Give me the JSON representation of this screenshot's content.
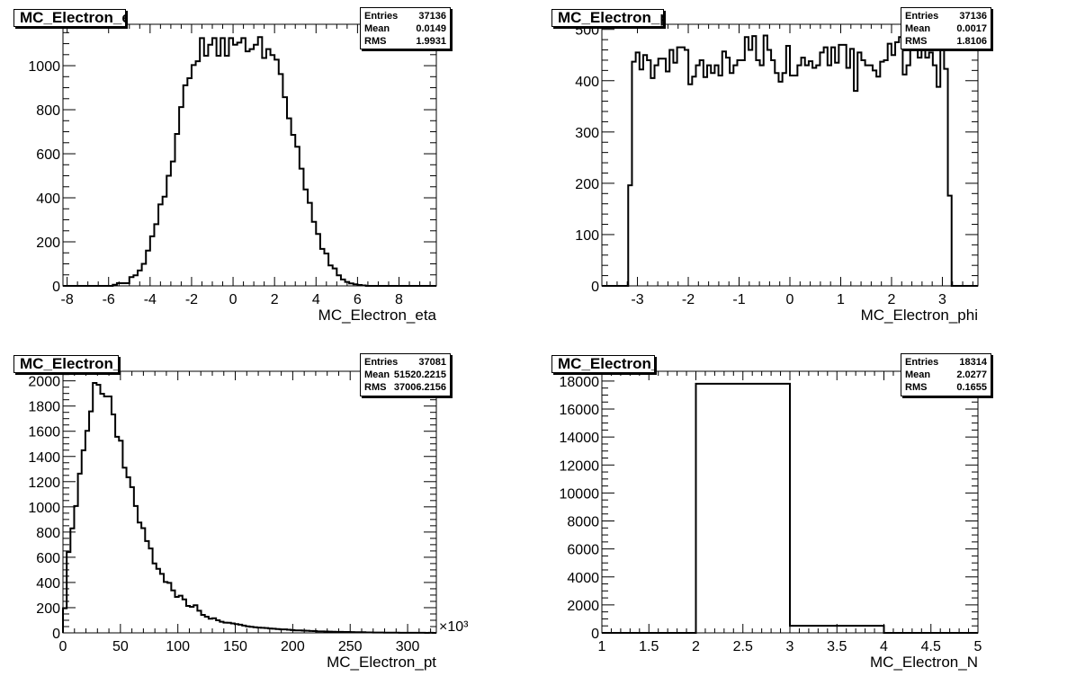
{
  "stats_labels": {
    "entries": "Entries",
    "mean": "Mean",
    "rms": "RMS"
  },
  "chart_data": [
    {
      "type": "bar",
      "title": "MC_Electron_eta",
      "xlabel": "MC_Electron_eta",
      "ylabel": "",
      "xlim": [
        -8.2,
        9.8
      ],
      "ylim": [
        0,
        1188
      ],
      "bin_start": -8.2,
      "bin_width": 0.2,
      "values": [
        0,
        0,
        0,
        0,
        0,
        0,
        0,
        0,
        0,
        0,
        0,
        0,
        5,
        12,
        12,
        12,
        40,
        48,
        70,
        100,
        160,
        225,
        280,
        370,
        405,
        500,
        565,
        690,
        812,
        911,
        943,
        1003,
        1020,
        1125,
        1045,
        1095,
        1125,
        1045,
        1125,
        1045,
        1125,
        1095,
        1105,
        1125,
        1065,
        1075,
        1095,
        1130,
        1035,
        1075,
        1048,
        1027,
        962,
        857,
        761,
        686,
        632,
        532,
        438,
        377,
        291,
        236,
        168,
        147,
        93,
        79,
        48,
        29,
        18,
        11,
        7,
        4,
        2,
        0,
        0,
        0,
        0,
        0,
        0,
        0,
        0,
        0,
        0,
        0,
        0,
        0,
        0,
        0,
        0,
        0
      ],
      "x_ticks": [
        -8,
        -6,
        -4,
        -2,
        0,
        2,
        4,
        6,
        8
      ],
      "y_ticks": [
        0,
        200,
        400,
        600,
        800,
        1000
      ],
      "stats": {
        "entries": "37136",
        "mean": "0.0149",
        "rms": "1.9931"
      },
      "grid": false
    },
    {
      "type": "bar",
      "title": "MC_Electron_phi",
      "xlabel": "MC_Electron_phi",
      "ylabel": "",
      "xlim": [
        -3.7,
        3.7
      ],
      "ylim": [
        0,
        510
      ],
      "bin_start": -3.7,
      "bin_width": 0.074,
      "values": [
        0,
        0,
        0,
        0,
        0,
        0,
        0,
        196,
        437,
        455,
        422,
        450,
        440,
        405,
        430,
        443,
        443,
        418,
        460,
        435,
        465,
        465,
        460,
        393,
        408,
        430,
        440,
        407,
        430,
        415,
        430,
        410,
        457,
        445,
        415,
        430,
        440,
        440,
        485,
        460,
        487,
        440,
        430,
        488,
        460,
        440,
        415,
        398,
        415,
        468,
        410,
        410,
        430,
        445,
        430,
        438,
        425,
        430,
        455,
        465,
        430,
        465,
        435,
        470,
        470,
        425,
        462,
        380,
        455,
        440,
        430,
        430,
        420,
        408,
        437,
        440,
        472,
        450,
        475,
        485,
        412,
        430,
        460,
        470,
        445,
        480,
        445,
        455,
        430,
        388,
        470,
        423,
        176,
        0,
        0,
        0,
        0,
        0,
        0,
        0
      ],
      "x_ticks": [
        -3,
        -2,
        -1,
        0,
        1,
        2,
        3
      ],
      "y_ticks": [
        0,
        100,
        200,
        300,
        400,
        500
      ],
      "stats": {
        "entries": "37136",
        "mean": "0.0017",
        "rms": "1.8106"
      },
      "grid": false
    },
    {
      "type": "bar",
      "title": "MC_Electron_pt",
      "xlabel": "MC_Electron_pt",
      "ylabel": "",
      "x_multiplier": "×10³",
      "xlim": [
        0,
        325
      ],
      "ylim": [
        0,
        2076
      ],
      "bin_start": 0,
      "bin_width": 3.25,
      "values": [
        195,
        641,
        829,
        1007,
        1264,
        1449,
        1603,
        1758,
        1983,
        1969,
        1898,
        1876,
        1876,
        1734,
        1556,
        1525,
        1311,
        1235,
        1157,
        1007,
        876,
        831,
        729,
        670,
        551,
        508,
        468,
        404,
        397,
        337,
        285,
        295,
        266,
        214,
        207,
        219,
        176,
        143,
        128,
        112,
        116,
        100,
        88,
        81,
        80,
        75,
        70,
        65,
        58,
        52,
        48,
        45,
        42,
        40,
        38,
        35,
        33,
        30,
        28,
        28,
        25,
        22,
        20,
        20,
        18,
        17,
        15,
        14,
        12,
        12,
        11,
        10,
        9,
        8,
        8,
        7,
        7,
        6,
        5,
        5,
        5,
        4,
        4,
        3,
        3,
        3,
        2,
        2,
        2,
        2,
        1,
        1,
        1,
        1,
        1,
        1,
        1,
        0,
        1,
        0
      ],
      "x_ticks": [
        0,
        50,
        100,
        150,
        200,
        250,
        300
      ],
      "y_ticks": [
        0,
        200,
        400,
        600,
        800,
        1000,
        1200,
        1400,
        1600,
        1800,
        2000
      ],
      "stats": {
        "entries": "37081",
        "mean": "51520.2215",
        "rms": "37006.2156"
      },
      "grid": false
    },
    {
      "type": "bar",
      "title": "MC_Electron_N",
      "xlabel": "MC_Electron_N",
      "ylabel": "",
      "xlim": [
        1,
        5
      ],
      "ylim": [
        0,
        18700
      ],
      "bin_start": 1,
      "bin_width": 1,
      "values": [
        0,
        17806,
        508,
        0
      ],
      "x_ticks": [
        1,
        1.5,
        2,
        2.5,
        3,
        3.5,
        4,
        4.5,
        5
      ],
      "y_ticks": [
        0,
        2000,
        4000,
        6000,
        8000,
        10000,
        12000,
        14000,
        16000,
        18000
      ],
      "stats": {
        "entries": "18314",
        "mean": "2.0277",
        "rms": "0.1655"
      },
      "grid": false
    }
  ]
}
